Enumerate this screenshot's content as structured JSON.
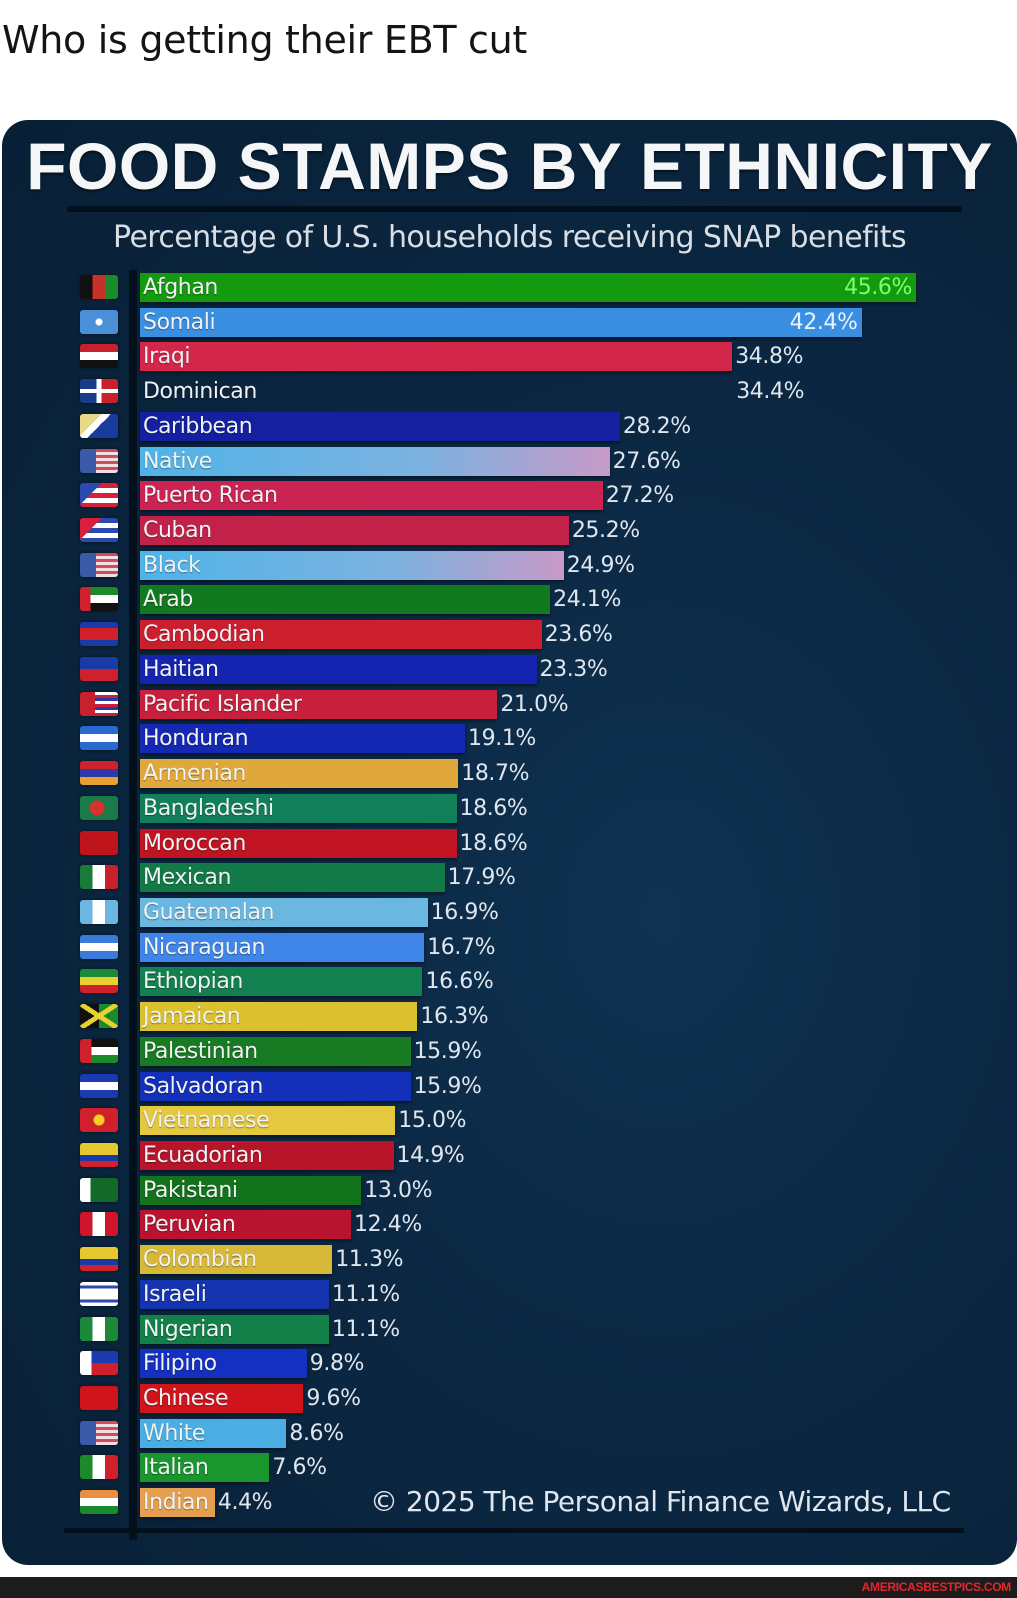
{
  "post": {
    "text": "Who is getting their EBT cut"
  },
  "chart_data": {
    "type": "bar",
    "orientation": "horizontal",
    "title": "FOOD STAMPS BY ETHNICITY",
    "subtitle": "Percentage of U.S. households receiving SNAP benefits",
    "xlabel": "",
    "ylabel": "",
    "unit": "%",
    "xlim": [
      0,
      50
    ],
    "grid": false,
    "legend": "none",
    "categories": [
      "Afghan",
      "Somali",
      "Iraqi",
      "Dominican",
      "Caribbean",
      "Native",
      "Puerto Rican",
      "Cuban",
      "Black",
      "Arab",
      "Cambodian",
      "Haitian",
      "Pacific Islander",
      "Honduran",
      "Armenian",
      "Bangladeshi",
      "Moroccan",
      "Mexican",
      "Guatemalan",
      "Nicaraguan",
      "Ethiopian",
      "Jamaican",
      "Palestinian",
      "Salvadoran",
      "Vietnamese",
      "Ecuadorian",
      "Pakistani",
      "Peruvian",
      "Colombian",
      "Israeli",
      "Nigerian",
      "Filipino",
      "Chinese",
      "White",
      "Italian",
      "Indian"
    ],
    "values": [
      45.6,
      42.4,
      34.8,
      34.4,
      28.2,
      27.6,
      27.2,
      25.2,
      24.9,
      24.1,
      23.6,
      23.3,
      21.0,
      19.1,
      18.7,
      18.6,
      18.6,
      17.9,
      16.9,
      16.7,
      16.6,
      16.3,
      15.9,
      15.9,
      15.0,
      14.9,
      13.0,
      12.4,
      11.3,
      11.1,
      11.1,
      9.8,
      9.6,
      8.6,
      7.6,
      4.4
    ],
    "annotations": [
      "© 2025 The Personal Finance Wizards, LLC"
    ]
  },
  "rows": [
    {
      "label": "Afghan",
      "value_text": "45.6%",
      "value": 45.6,
      "color": "#149a0e",
      "value_color": "#7dff6a",
      "inside": true,
      "flag": "flag-afghanistan"
    },
    {
      "label": "Somali",
      "value_text": "42.4%",
      "value": 42.4,
      "color": "#3a8fe0",
      "value_color": "#e8f2ff",
      "inside": true,
      "flag": "flag-somalia"
    },
    {
      "label": "Iraqi",
      "value_text": "34.8%",
      "value": 34.8,
      "color": "#d3274a",
      "value_color": "#dfe6ee",
      "inside": false,
      "flag": "flag-iraq"
    },
    {
      "label": "Dominican",
      "value_text": "34.4%",
      "value": 34.4,
      "color": "transparent",
      "value_color": "#dfe6ee",
      "inside": false,
      "flag": "flag-dominican-republic"
    },
    {
      "label": "Caribbean",
      "value_text": "28.2%",
      "value": 28.2,
      "color": "#1420a0",
      "value_color": "#dfe6ee",
      "inside": false,
      "flag": "flag-caribbean"
    },
    {
      "label": "Native",
      "value_text": "27.6%",
      "value": 27.6,
      "color": "linear-gradient(90deg,#4fb3e8 0%,#7cb2e0 60%,#c79ac8 100%)",
      "value_color": "#dfe6ee",
      "inside": false,
      "flag": "flag-usa"
    },
    {
      "label": "Puerto Rican",
      "value_text": "27.2%",
      "value": 27.2,
      "color": "#cc2452",
      "value_color": "#dfe6ee",
      "inside": false,
      "flag": "flag-puerto-rico"
    },
    {
      "label": "Cuban",
      "value_text": "25.2%",
      "value": 25.2,
      "color": "#c2224a",
      "value_color": "#dfe6ee",
      "inside": false,
      "flag": "flag-cuba"
    },
    {
      "label": "Black",
      "value_text": "24.9%",
      "value": 24.9,
      "color": "linear-gradient(90deg,#4fb3e8 0%,#7cb2e0 60%,#c79ac8 100%)",
      "value_color": "#dfe6ee",
      "inside": false,
      "flag": "flag-usa"
    },
    {
      "label": "Arab",
      "value_text": "24.1%",
      "value": 24.1,
      "color": "#127a1e",
      "value_color": "#dfe6ee",
      "inside": false,
      "flag": "flag-uae"
    },
    {
      "label": "Cambodian",
      "value_text": "23.6%",
      "value": 23.6,
      "color": "#cc1f2e",
      "value_color": "#dfe6ee",
      "inside": false,
      "flag": "flag-cambodia"
    },
    {
      "label": "Haitian",
      "value_text": "23.3%",
      "value": 23.3,
      "color": "#1424b0",
      "value_color": "#dfe6ee",
      "inside": false,
      "flag": "flag-haiti"
    },
    {
      "label": "Pacific Islander",
      "value_text": "21.0%",
      "value": 21.0,
      "color": "#c8203c",
      "value_color": "#dfe6ee",
      "inside": false,
      "flag": "flag-hawaii"
    },
    {
      "label": "Honduran",
      "value_text": "19.1%",
      "value": 19.1,
      "color": "#1428b4",
      "value_color": "#dfe6ee",
      "inside": false,
      "flag": "flag-honduras"
    },
    {
      "label": "Armenian",
      "value_text": "18.7%",
      "value": 18.7,
      "color": "#e0a83a",
      "value_color": "#dfe6ee",
      "inside": false,
      "flag": "flag-armenia"
    },
    {
      "label": "Bangladeshi",
      "value_text": "18.6%",
      "value": 18.6,
      "color": "#11805a",
      "value_color": "#dfe6ee",
      "inside": false,
      "flag": "flag-bangladesh"
    },
    {
      "label": "Moroccan",
      "value_text": "18.6%",
      "value": 18.6,
      "color": "#c01422",
      "value_color": "#dfe6ee",
      "inside": false,
      "flag": "flag-morocco"
    },
    {
      "label": "Mexican",
      "value_text": "17.9%",
      "value": 17.9,
      "color": "#127a48",
      "value_color": "#dfe6ee",
      "inside": false,
      "flag": "flag-mexico"
    },
    {
      "label": "Guatemalan",
      "value_text": "16.9%",
      "value": 16.9,
      "color": "#6ab8e0",
      "value_color": "#dfe6ee",
      "inside": false,
      "flag": "flag-guatemala"
    },
    {
      "label": "Nicaraguan",
      "value_text": "16.7%",
      "value": 16.7,
      "color": "#3f86e8",
      "value_color": "#dfe6ee",
      "inside": false,
      "flag": "flag-nicaragua"
    },
    {
      "label": "Ethiopian",
      "value_text": "16.6%",
      "value": 16.6,
      "color": "#128050",
      "value_color": "#dfe6ee",
      "inside": false,
      "flag": "flag-ethiopia"
    },
    {
      "label": "Jamaican",
      "value_text": "16.3%",
      "value": 16.3,
      "color": "#dcc12e",
      "value_color": "#dfe6ee",
      "inside": false,
      "flag": "flag-jamaica"
    },
    {
      "label": "Palestinian",
      "value_text": "15.9%",
      "value": 15.9,
      "color": "#187a22",
      "value_color": "#dfe6ee",
      "inside": false,
      "flag": "flag-palestine"
    },
    {
      "label": "Salvadoran",
      "value_text": "15.9%",
      "value": 15.9,
      "color": "#1430b8",
      "value_color": "#dfe6ee",
      "inside": false,
      "flag": "flag-el-salvador"
    },
    {
      "label": "Vietnamese",
      "value_text": "15.0%",
      "value": 15.0,
      "color": "#e4c840",
      "value_color": "#dfe6ee",
      "inside": false,
      "flag": "flag-vietnam"
    },
    {
      "label": "Ecuadorian",
      "value_text": "14.9%",
      "value": 14.9,
      "color": "#b8142a",
      "value_color": "#dfe6ee",
      "inside": false,
      "flag": "flag-ecuador"
    },
    {
      "label": "Pakistani",
      "value_text": "13.0%",
      "value": 13.0,
      "color": "#13721c",
      "value_color": "#dfe6ee",
      "inside": false,
      "flag": "flag-pakistan"
    },
    {
      "label": "Peruvian",
      "value_text": "12.4%",
      "value": 12.4,
      "color": "#b81430",
      "value_color": "#dfe6ee",
      "inside": false,
      "flag": "flag-peru"
    },
    {
      "label": "Colombian",
      "value_text": "11.3%",
      "value": 11.3,
      "color": "#d8b838",
      "value_color": "#dfe6ee",
      "inside": false,
      "flag": "flag-colombia"
    },
    {
      "label": "Israeli",
      "value_text": "11.1%",
      "value": 11.1,
      "color": "#1434b0",
      "value_color": "#dfe6ee",
      "inside": false,
      "flag": "flag-israel"
    },
    {
      "label": "Nigerian",
      "value_text": "11.1%",
      "value": 11.1,
      "color": "#128048",
      "value_color": "#dfe6ee",
      "inside": false,
      "flag": "flag-nigeria"
    },
    {
      "label": "Filipino",
      "value_text": "9.8%",
      "value": 9.8,
      "color": "#1430c0",
      "value_color": "#dfe6ee",
      "inside": false,
      "flag": "flag-philippines"
    },
    {
      "label": "Chinese",
      "value_text": "9.6%",
      "value": 9.6,
      "color": "#d0141c",
      "value_color": "#dfe6ee",
      "inside": false,
      "flag": "flag-china"
    },
    {
      "label": "White",
      "value_text": "8.6%",
      "value": 8.6,
      "color": "#4aaee4",
      "value_color": "#dfe6ee",
      "inside": false,
      "flag": "flag-usa"
    },
    {
      "label": "Italian",
      "value_text": "7.6%",
      "value": 7.6,
      "color": "#1a962e",
      "value_color": "#dfe6ee",
      "inside": false,
      "flag": "flag-italy"
    },
    {
      "label": "Indian",
      "value_text": "4.4%",
      "value": 4.4,
      "color": "#e4a050",
      "value_color": "#dfe6ee",
      "inside": false,
      "flag": "flag-india"
    }
  ],
  "flags": {
    "flag-afghanistan": "linear-gradient(90deg,#111 0 33%,#c8302c 33% 66%,#1b8a2a 66%)",
    "flag-somalia": "radial-gradient(circle at 50% 50%,#fff 0 3px,#4a90d8 4px)",
    "flag-iraq": "linear-gradient(180deg,#c8202c 0 33%,#fff 33% 66%,#111 66%)",
    "flag-dominican-republic": "linear-gradient(90deg,transparent 0 44%,#fff 44% 56%,transparent 56%),linear-gradient(180deg,transparent 0 42%,#fff 42% 58%,transparent 58%),linear-gradient(90deg,#1a3a8a 0 50%,#c8202c 50%)",
    "flag-caribbean": "linear-gradient(135deg,#e8d88a 0 35%,#fff 35% 50%,#1a3aa0 50%)",
    "flag-usa": "linear-gradient(90deg,#3a5aa8 0 42%,transparent 42%),repeating-linear-gradient(180deg,#d04a60 0 3px,#f0e0e4 3px 6px)",
    "flag-puerto-rico": "linear-gradient(135deg,#2a4ab0 0 35%,transparent 35%),repeating-linear-gradient(180deg,#d8203c 0 5px,#fff 5px 10px)",
    "flag-cuba": "linear-gradient(135deg,#d8203c 0 35%,transparent 35%),repeating-linear-gradient(180deg,#2a4ab0 0 5px,#fff 5px 10px)",
    "flag-uae": "linear-gradient(90deg,#d0202c 0 28%,transparent 28%),linear-gradient(180deg,#1a8a2a 0 33%,#fff 33% 66%,#111 66%)",
    "flag-cambodia": "linear-gradient(180deg,#1a3aa8 0 25%,#d0202c 25% 75%,#1a3aa8 75%)",
    "flag-haiti": "linear-gradient(180deg,#1a3aa8 0 50%,#d0202c 50%)",
    "flag-hawaii": "linear-gradient(90deg,#c8202c 0 40%,transparent 40%),repeating-linear-gradient(180deg,#fff 0 3px,#c8203c 3px 6px,#2a3aa0 6px 9px)",
    "flag-honduras": "linear-gradient(180deg,#2a6ad0 0 33%,#fff 33% 66%,#2a6ad0 66%)",
    "flag-armenia": "linear-gradient(180deg,#d0202c 0 33%,#2a3aa8 33% 66%,#e8a030 66%)",
    "flag-bangladesh": "radial-gradient(circle at 45% 50%,#d8302c 0 7px,#1a7a48 8px)",
    "flag-morocco": "#c0141c",
    "flag-mexico": "linear-gradient(90deg,#1a7a3a 0 33%,#fff 33% 66%,#c8202c 66%)",
    "flag-guatemala": "linear-gradient(90deg,#6ab8e0 0 33%,#fff 33% 66%,#6ab8e0 66%)",
    "flag-nicaragua": "linear-gradient(180deg,#3a7ad8 0 33%,#fff 33% 66%,#3a7ad8 66%)",
    "flag-ethiopia": "linear-gradient(180deg,#1a8a3a 0 33%,#e8d030 33% 66%,#d0202c 66%)",
    "flag-jamaica": "linear-gradient(33deg,transparent 0 44%,#e8d030 44% 56%,transparent 56%),linear-gradient(-33deg,transparent 0 44%,#e8d030 44% 56%,transparent 56%),linear-gradient(90deg,#111 0 50%,#1a8a2a 50%)",
    "flag-palestine": "linear-gradient(90deg,#d0202c 0 30%,transparent 30%),linear-gradient(180deg,#111 0 33%,#fff 33% 66%,#1a8a2a 66%)",
    "flag-el-salvador": "linear-gradient(180deg,#1a3ab0 0 33%,#fff 33% 66%,#1a3ab0 66%)",
    "flag-vietnam": "radial-gradient(circle at 50% 50%,#f0d020 0 5px,#d0202c 6px)",
    "flag-ecuador": "linear-gradient(180deg,#e8c830 0 50%,#1a3aa8 50% 75%,#d0202c 75%)",
    "flag-pakistan": "linear-gradient(90deg,#fff 0 28%,#136a28 28%)",
    "flag-peru": "linear-gradient(90deg,#d0142c 0 33%,#fff 33% 66%,#d0142c 66%)",
    "flag-colombia": "linear-gradient(180deg,#e8c830 0 50%,#1a3aa8 50% 75%,#d0202c 75%)",
    "flag-israel": "linear-gradient(180deg,#fff 0 15%,#2a4ab0 15% 28%,#fff 28% 72%,#2a4ab0 72% 85%,#fff 85%)",
    "flag-nigeria": "linear-gradient(90deg,#1a8a3a 0 33%,#fff 33% 66%,#1a8a3a 66%)",
    "flag-philippines": "linear-gradient(90deg,#fff 0 30%,transparent 30%),linear-gradient(180deg,#1a3ab0 0 50%,#d0202c 50%)",
    "flag-china": "#d0141c",
    "flag-italy": "linear-gradient(90deg,#1a8a2a 0 33%,#fff 33% 66%,#d0202c 66%)",
    "flag-india": "linear-gradient(180deg,#e89040 0 33%,#fff 33% 66%,#1a8a2a 66%)"
  },
  "card": {
    "title": "FOOD STAMPS BY ETHNICITY",
    "subtitle": "Percentage of U.S. households receiving SNAP benefits",
    "copyright": "© 2025 The Personal Finance Wizards, LLC"
  },
  "footer": {
    "watermark": "AMERICASBESTPICS.COM"
  }
}
